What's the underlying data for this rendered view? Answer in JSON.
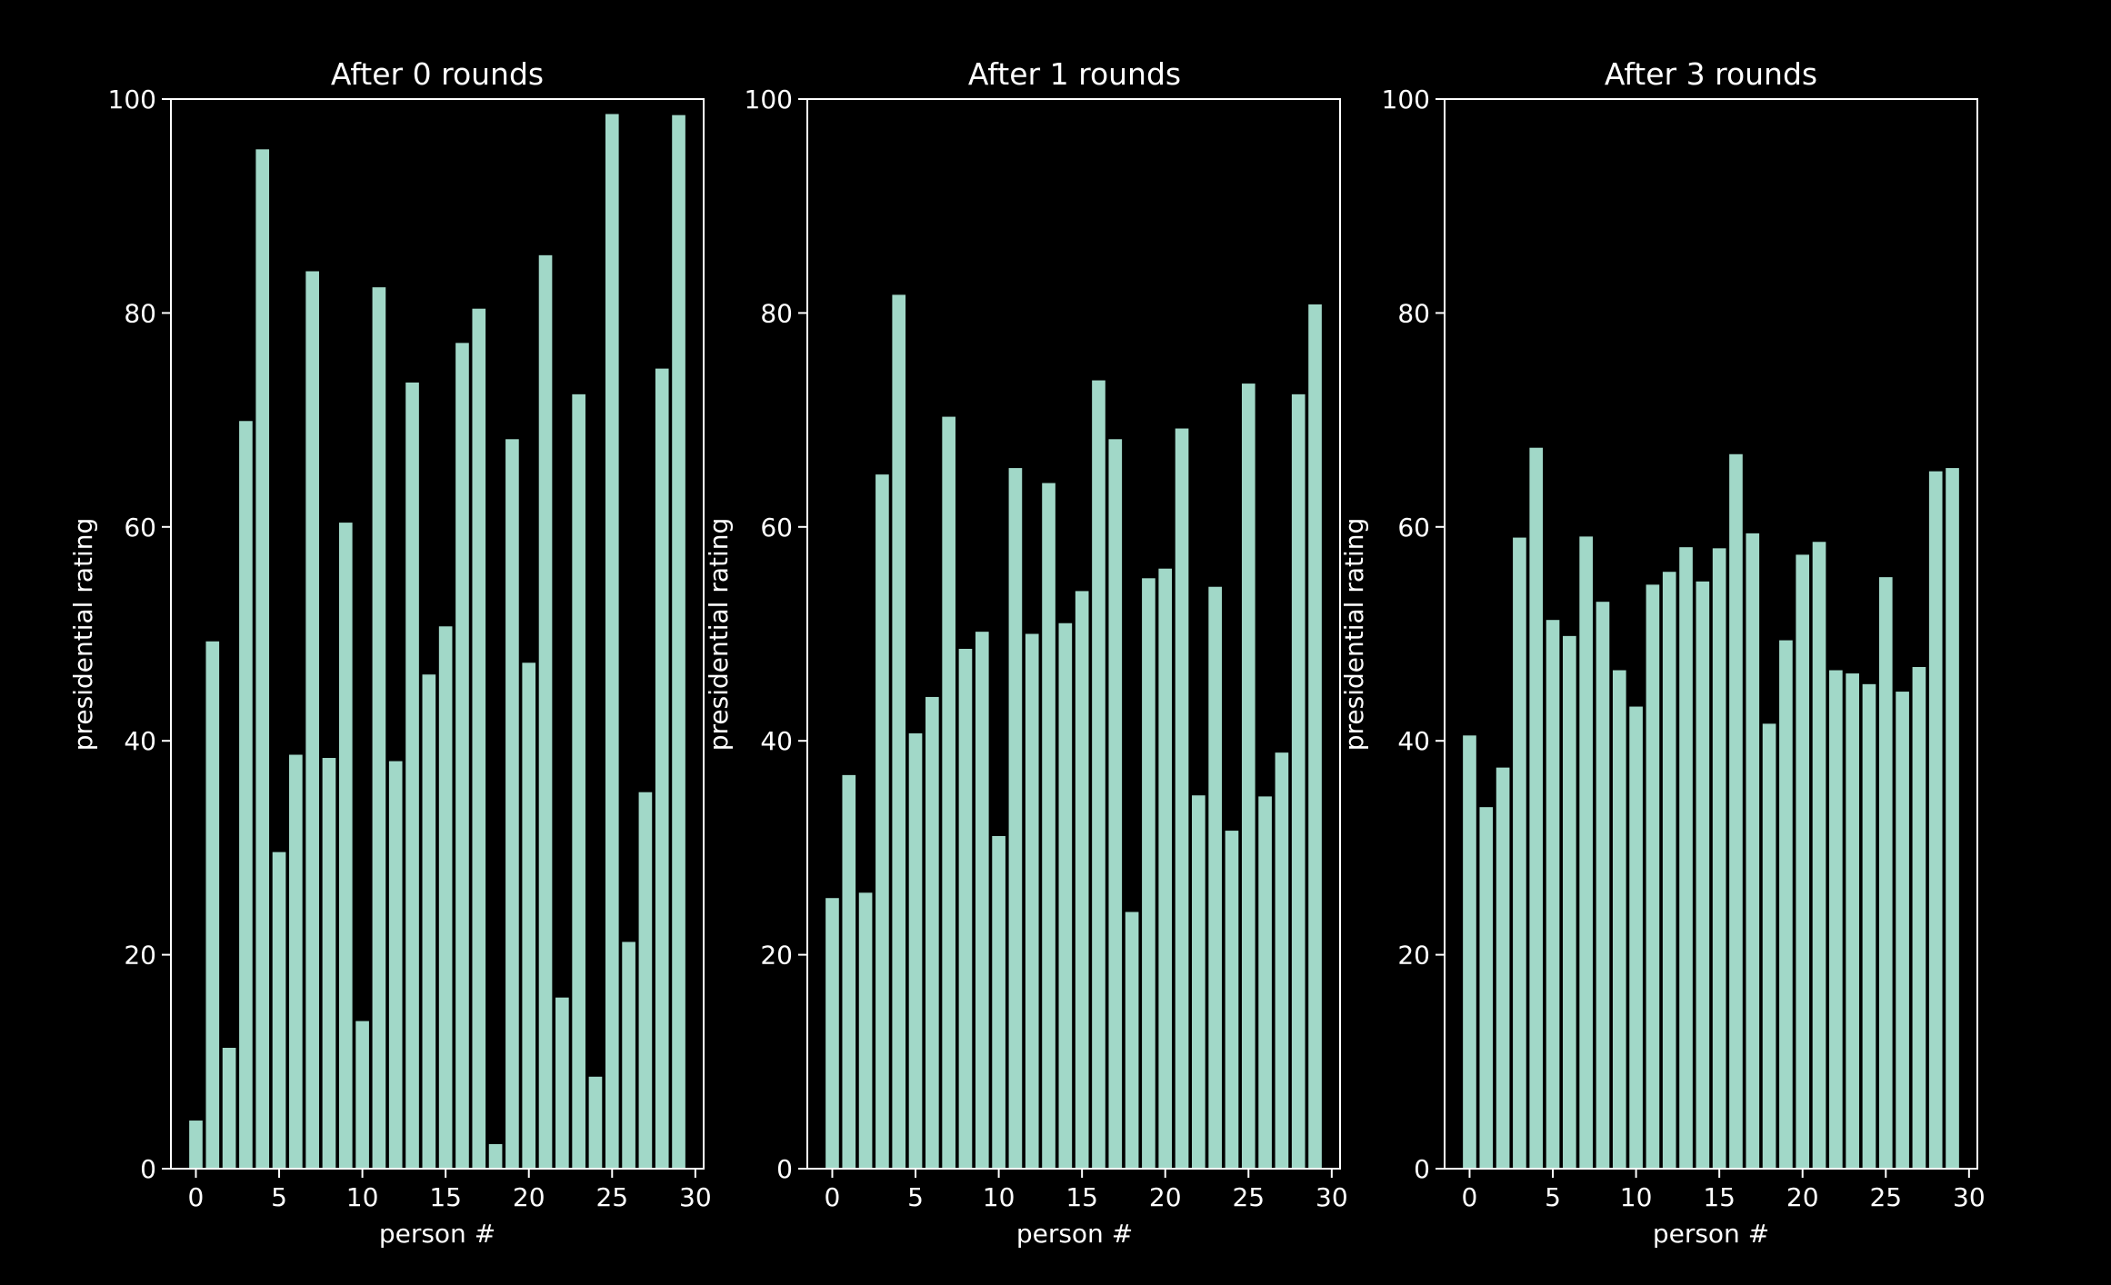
{
  "chart_data": [
    {
      "type": "bar",
      "title": "After 0 rounds",
      "xlabel": "person #",
      "ylabel": "presidential rating",
      "xlim": [
        -1.5,
        30.5
      ],
      "ylim": [
        0,
        100
      ],
      "xticks": [
        0,
        5,
        10,
        15,
        20,
        25,
        30
      ],
      "yticks": [
        0,
        20,
        40,
        60,
        80,
        100
      ],
      "x": [
        0,
        1,
        2,
        3,
        4,
        5,
        6,
        7,
        8,
        9,
        10,
        11,
        12,
        13,
        14,
        15,
        16,
        17,
        18,
        19,
        20,
        21,
        22,
        23,
        24,
        25,
        26,
        27,
        28,
        29
      ],
      "values": [
        4.5,
        49.3,
        11.3,
        69.9,
        95.3,
        29.6,
        38.7,
        83.9,
        38.4,
        60.4,
        13.8,
        82.4,
        38.1,
        73.5,
        46.2,
        50.7,
        77.2,
        80.4,
        2.3,
        68.2,
        47.3,
        85.4,
        16.0,
        72.4,
        8.6,
        98.6,
        21.2,
        35.2,
        74.8,
        98.5
      ],
      "grid": false,
      "color": "#a1d8c8"
    },
    {
      "type": "bar",
      "title": "After 1 rounds",
      "xlabel": "person #",
      "ylabel": "presidential rating",
      "xlim": [
        -1.5,
        30.5
      ],
      "ylim": [
        0,
        100
      ],
      "xticks": [
        0,
        5,
        10,
        15,
        20,
        25,
        30
      ],
      "yticks": [
        0,
        20,
        40,
        60,
        80,
        100
      ],
      "x": [
        0,
        1,
        2,
        3,
        4,
        5,
        6,
        7,
        8,
        9,
        10,
        11,
        12,
        13,
        14,
        15,
        16,
        17,
        18,
        19,
        20,
        21,
        22,
        23,
        24,
        25,
        26,
        27,
        28,
        29
      ],
      "values": [
        25.3,
        36.8,
        25.8,
        64.9,
        81.7,
        40.7,
        44.1,
        70.3,
        48.6,
        50.2,
        31.1,
        65.5,
        50.0,
        64.1,
        51.0,
        54.0,
        73.7,
        68.2,
        24.0,
        55.2,
        56.1,
        69.2,
        34.9,
        54.4,
        31.6,
        73.4,
        34.8,
        38.9,
        72.4,
        80.8
      ],
      "grid": false,
      "color": "#a1d8c8"
    },
    {
      "type": "bar",
      "title": "After 3 rounds",
      "xlabel": "person #",
      "ylabel": "presidential rating",
      "xlim": [
        -1.5,
        30.5
      ],
      "ylim": [
        0,
        100
      ],
      "xticks": [
        0,
        5,
        10,
        15,
        20,
        25,
        30
      ],
      "yticks": [
        0,
        20,
        40,
        60,
        80,
        100
      ],
      "x": [
        0,
        1,
        2,
        3,
        4,
        5,
        6,
        7,
        8,
        9,
        10,
        11,
        12,
        13,
        14,
        15,
        16,
        17,
        18,
        19,
        20,
        21,
        22,
        23,
        24,
        25,
        26,
        27,
        28,
        29
      ],
      "values": [
        40.5,
        33.8,
        37.5,
        59.0,
        67.4,
        51.3,
        49.8,
        59.1,
        53.0,
        46.6,
        43.2,
        54.6,
        55.8,
        58.1,
        54.9,
        58.0,
        66.8,
        59.4,
        41.6,
        49.4,
        57.4,
        58.6,
        46.6,
        46.3,
        45.3,
        55.3,
        44.6,
        46.9,
        65.2,
        65.5
      ],
      "grid": false,
      "color": "#a1d8c8"
    }
  ],
  "colors": {
    "background": "#000000",
    "bar": "#a1d8c8",
    "axis": "#ffffff",
    "text": "#ffffff"
  }
}
